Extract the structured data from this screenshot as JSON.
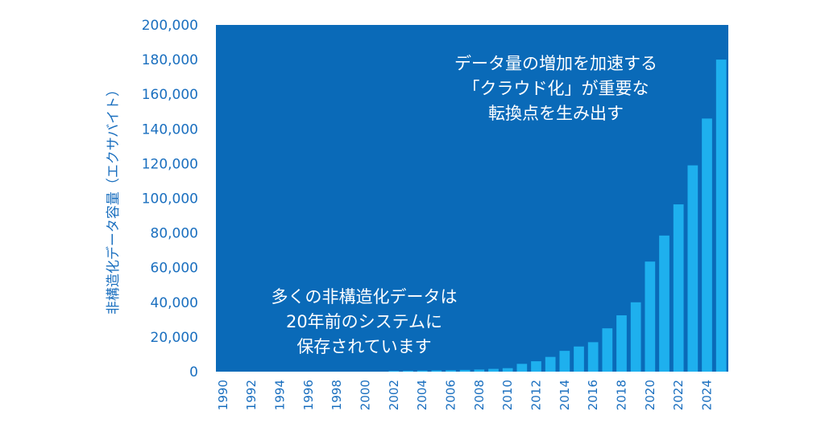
{
  "colors": {
    "plot_background": "#0a6ab8",
    "bar": "#1eb0ee",
    "axis_text": "#1a6fbf",
    "annotation_text": "#ffffff"
  },
  "chart_data": {
    "type": "bar",
    "ylabel": "非構造化データ容量（エクサバイト）",
    "xlabel": "",
    "ylim": [
      0,
      200000
    ],
    "y_ticks": [
      "0",
      "20,000",
      "40,000",
      "60,000",
      "80,000",
      "100,000",
      "120,000",
      "140,000",
      "160,000",
      "180,000",
      "200,000"
    ],
    "x_tick_labels": [
      "1990",
      "1992",
      "1994",
      "1996",
      "1998",
      "2000",
      "2002",
      "2004",
      "2006",
      "2008",
      "2010",
      "2012",
      "2014",
      "2016",
      "2018",
      "2020",
      "2022",
      "2024"
    ],
    "categories": [
      1990,
      1991,
      1992,
      1993,
      1994,
      1995,
      1996,
      1997,
      1998,
      1999,
      2000,
      2001,
      2002,
      2003,
      2004,
      2005,
      2006,
      2007,
      2008,
      2009,
      2010,
      2011,
      2012,
      2013,
      2014,
      2015,
      2016,
      2017,
      2018,
      2019,
      2020,
      2021,
      2022,
      2023,
      2024,
      2025
    ],
    "values": [
      0,
      0,
      0,
      0,
      0,
      0,
      0,
      0,
      0,
      0,
      0,
      0,
      400,
      500,
      600,
      700,
      800,
      1000,
      1200,
      1600,
      2000,
      4500,
      6000,
      8500,
      12000,
      14500,
      17000,
      25000,
      32500,
      40000,
      63500,
      78500,
      96500,
      119000,
      146000,
      180000
    ],
    "grid": false,
    "annotations": [
      {
        "lines": [
          "データ量の増加を加速する",
          "「クラウド化」が重要な",
          "転換点を生み出す"
        ]
      },
      {
        "lines": [
          "多くの非構造化データは",
          "20年前のシステムに",
          "保存されています"
        ]
      }
    ]
  }
}
